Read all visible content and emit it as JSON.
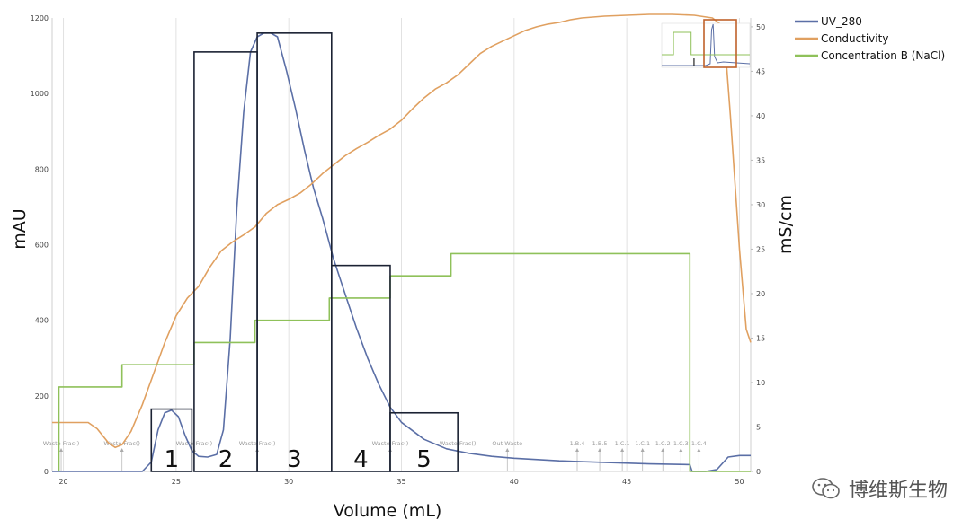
{
  "chart_data": {
    "type": "line",
    "xlabel": "Volume (mL)",
    "ylabel": "mAU",
    "y2label": "mS/cm",
    "xlim": [
      19.5,
      50.5
    ],
    "ylim": [
      0,
      1200
    ],
    "y2lim": [
      0,
      51
    ],
    "x_ticks": [
      20,
      25,
      30,
      35,
      40,
      45,
      50
    ],
    "y_ticks": [
      0,
      200,
      400,
      600,
      800,
      1000,
      1200
    ],
    "y2_ticks": [
      0,
      5,
      10,
      15,
      20,
      25,
      30,
      35,
      40,
      45,
      50
    ],
    "grid": true,
    "legend_position": "top-right",
    "series": [
      {
        "name": "UV_280",
        "color": "#5b6fa6",
        "x": [
          19.5,
          23.5,
          23.9,
          24.2,
          24.5,
          24.8,
          25.1,
          25.4,
          25.7,
          26.0,
          26.4,
          26.8,
          27.1,
          27.4,
          27.7,
          28.0,
          28.3,
          28.6,
          28.9,
          29.2,
          29.5,
          29.9,
          30.3,
          30.7,
          31.1,
          31.5,
          32.0,
          32.5,
          33.0,
          33.5,
          34.0,
          34.5,
          35.0,
          36.0,
          37.0,
          38.0,
          39.0,
          40.0,
          42.0,
          44.0,
          46.0,
          47.8,
          47.9,
          48.5,
          49.0,
          49.5,
          50.0,
          50.5
        ],
        "y": [
          0,
          0,
          25,
          110,
          155,
          162,
          145,
          95,
          55,
          40,
          38,
          45,
          110,
          350,
          700,
          950,
          1110,
          1150,
          1160,
          1160,
          1150,
          1060,
          960,
          850,
          750,
          670,
          560,
          470,
          380,
          300,
          230,
          170,
          130,
          85,
          60,
          48,
          40,
          35,
          28,
          24,
          20,
          18,
          0,
          0,
          5,
          38,
          42,
          42
        ]
      },
      {
        "name": "Conductivity",
        "color": "#e0a060",
        "axis": "right",
        "x": [
          19.5,
          21.1,
          21.5,
          22.0,
          22.3,
          22.6,
          23.0,
          23.5,
          24.0,
          24.5,
          25.0,
          25.5,
          26.0,
          26.5,
          27.0,
          27.5,
          28.0,
          28.5,
          29.0,
          29.5,
          30.0,
          30.5,
          31.0,
          31.5,
          32.0,
          32.5,
          33.0,
          33.5,
          34.0,
          34.5,
          35.0,
          35.5,
          36.0,
          36.5,
          37.0,
          37.5,
          38.0,
          38.5,
          39.0,
          39.5,
          40.0,
          40.5,
          41.0,
          41.5,
          42.0,
          42.5,
          43.0,
          44.0,
          45.0,
          46.0,
          47.0,
          48.0,
          48.8,
          49.3,
          49.6,
          50.0,
          50.3,
          50.5
        ],
        "y": [
          5.5,
          5.5,
          4.8,
          3.2,
          2.7,
          3.0,
          4.5,
          7.5,
          11.0,
          14.5,
          17.5,
          19.5,
          20.8,
          23.0,
          24.8,
          25.8,
          26.6,
          27.5,
          29.0,
          30.0,
          30.6,
          31.3,
          32.3,
          33.5,
          34.5,
          35.5,
          36.3,
          37.0,
          37.8,
          38.5,
          39.5,
          40.8,
          42.0,
          43.0,
          43.7,
          44.6,
          45.8,
          47.0,
          47.8,
          48.4,
          49.0,
          49.6,
          50.0,
          50.3,
          50.5,
          50.8,
          51.0,
          51.2,
          51.3,
          51.4,
          51.4,
          51.3,
          51.0,
          50.0,
          40.0,
          25.0,
          16.0,
          14.5
        ]
      },
      {
        "name": "Concentration B (NaCl)",
        "color": "#8fc15a",
        "axis": "right",
        "x": [
          19.8,
          19.8,
          22.6,
          22.6,
          25.8,
          25.8,
          28.5,
          28.5,
          31.8,
          31.8,
          34.5,
          34.5,
          37.2,
          37.2,
          47.8,
          47.8,
          50.5
        ],
        "y": [
          0,
          9.5,
          9.5,
          12.0,
          12.0,
          14.5,
          14.5,
          17.0,
          17.0,
          19.5,
          19.5,
          22.0,
          22.0,
          24.5,
          24.5,
          0,
          0
        ]
      }
    ],
    "fractions": [
      {
        "label": "1",
        "x0": 23.9,
        "x1": 25.7,
        "top": 165
      },
      {
        "label": "2",
        "x0": 25.8,
        "x1": 28.6,
        "top": 1110
      },
      {
        "label": "3",
        "x0": 28.6,
        "x1": 31.9,
        "top": 1160
      },
      {
        "label": "4",
        "x0": 31.9,
        "x1": 34.5,
        "top": 545
      },
      {
        "label": "5",
        "x0": 34.5,
        "x1": 37.5,
        "top": 155
      }
    ],
    "markers": [
      {
        "x": 19.9,
        "label": "Waste Frac()"
      },
      {
        "x": 22.6,
        "label": "Waste Frac()"
      },
      {
        "x": 25.8,
        "label": "Waste Frac()"
      },
      {
        "x": 28.6,
        "label": "Waste Frac()"
      },
      {
        "x": 34.5,
        "label": "Waste Frac()"
      },
      {
        "x": 37.5,
        "label": "Waste Frac()"
      },
      {
        "x": 39.7,
        "label": "Out-Waste"
      },
      {
        "x": 42.8,
        "label": "1.B.4"
      },
      {
        "x": 43.8,
        "label": "1.B.5"
      },
      {
        "x": 44.8,
        "label": "1.C.1"
      },
      {
        "x": 45.7,
        "label": "1.C.1"
      },
      {
        "x": 46.6,
        "label": "1.C.2"
      },
      {
        "x": 47.4,
        "label": "1.C.3"
      },
      {
        "x": 48.2,
        "label": "1.C.4"
      }
    ]
  },
  "watermark": {
    "text": "博维斯生物",
    "icon": "wechat-icon"
  }
}
